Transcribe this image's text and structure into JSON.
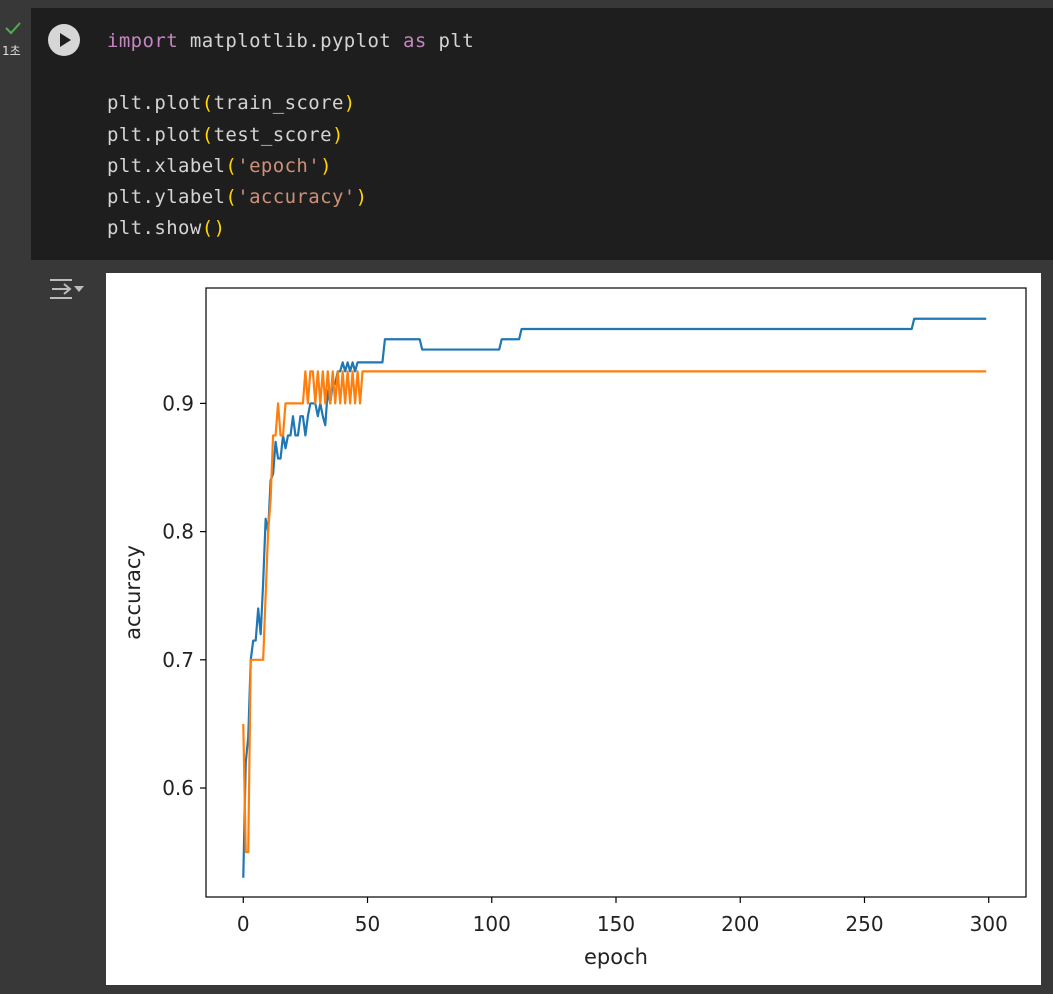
{
  "cell": {
    "status": "success",
    "exec_time": "1초",
    "code_lines": [
      {
        "pre": "",
        "kw": "import",
        "mid": " matplotlib.pyplot ",
        "kw2": "as",
        "post": " plt"
      },
      {
        "plain": ""
      },
      {
        "fn": "plt.plot",
        "open": "(",
        "arg": "train_score",
        "argtype": "plain",
        "close": ")"
      },
      {
        "fn": "plt.plot",
        "open": "(",
        "arg": "test_score",
        "argtype": "plain",
        "close": ")"
      },
      {
        "fn": "plt.xlabel",
        "open": "(",
        "arg": "'epoch'",
        "argtype": "str",
        "close": ")"
      },
      {
        "fn": "plt.ylabel",
        "open": "(",
        "arg": "'accuracy'",
        "argtype": "str",
        "close": ")"
      },
      {
        "fn": "plt.show",
        "open": "(",
        "arg": "",
        "argtype": "plain",
        "close": ")"
      }
    ]
  },
  "colors": {
    "train": "#1f77b4",
    "test": "#ff7f0e",
    "keyword": "#c586c0",
    "string": "#ce9178",
    "paren": "#ffd700"
  },
  "chart_data": {
    "type": "line",
    "xlabel": "epoch",
    "ylabel": "accuracy",
    "xlim": [
      -15,
      315
    ],
    "ylim": [
      0.515,
      0.99
    ],
    "xticks": [
      0,
      50,
      100,
      150,
      200,
      250,
      300
    ],
    "yticks": [
      0.6,
      0.7,
      0.8,
      0.9
    ],
    "ytick_labels": [
      "0.6",
      "0.7",
      "0.8",
      "0.9"
    ],
    "grid": false,
    "series": [
      {
        "key": "train",
        "points": [
          [
            0,
            0.53
          ],
          [
            1,
            0.62
          ],
          [
            2,
            0.64
          ],
          [
            3,
            0.7
          ],
          [
            4,
            0.715
          ],
          [
            5,
            0.715
          ],
          [
            6,
            0.74
          ],
          [
            7,
            0.72
          ],
          [
            8,
            0.76
          ],
          [
            9,
            0.81
          ],
          [
            10,
            0.8
          ],
          [
            11,
            0.84
          ],
          [
            12,
            0.845
          ],
          [
            13,
            0.87
          ],
          [
            14,
            0.857
          ],
          [
            15,
            0.857
          ],
          [
            16,
            0.875
          ],
          [
            17,
            0.865
          ],
          [
            18,
            0.875
          ],
          [
            19,
            0.875
          ],
          [
            20,
            0.89
          ],
          [
            21,
            0.875
          ],
          [
            22,
            0.875
          ],
          [
            23,
            0.89
          ],
          [
            24,
            0.89
          ],
          [
            25,
            0.875
          ],
          [
            26,
            0.89
          ],
          [
            27,
            0.9
          ],
          [
            28,
            0.9
          ],
          [
            29,
            0.9
          ],
          [
            30,
            0.89
          ],
          [
            31,
            0.9
          ],
          [
            32,
            0.89
          ],
          [
            33,
            0.883
          ],
          [
            34,
            0.91
          ],
          [
            35,
            0.9
          ],
          [
            36,
            0.915
          ],
          [
            37,
            0.915
          ],
          [
            38,
            0.925
          ],
          [
            39,
            0.925
          ],
          [
            40,
            0.932
          ],
          [
            41,
            0.925
          ],
          [
            42,
            0.932
          ],
          [
            43,
            0.925
          ],
          [
            44,
            0.932
          ],
          [
            45,
            0.925
          ],
          [
            46,
            0.932
          ],
          [
            56,
            0.932
          ],
          [
            57,
            0.95
          ],
          [
            71,
            0.95
          ],
          [
            72,
            0.942
          ],
          [
            103,
            0.942
          ],
          [
            104,
            0.95
          ],
          [
            111,
            0.95
          ],
          [
            112,
            0.958
          ],
          [
            269,
            0.958
          ],
          [
            270,
            0.966
          ],
          [
            299,
            0.966
          ]
        ]
      },
      {
        "key": "test",
        "points": [
          [
            0,
            0.65
          ],
          [
            1,
            0.55
          ],
          [
            2,
            0.55
          ],
          [
            3,
            0.7
          ],
          [
            4,
            0.7
          ],
          [
            5,
            0.7
          ],
          [
            6,
            0.7
          ],
          [
            7,
            0.7
          ],
          [
            8,
            0.7
          ],
          [
            9,
            0.75
          ],
          [
            10,
            0.8
          ],
          [
            11,
            0.825
          ],
          [
            12,
            0.875
          ],
          [
            13,
            0.875
          ],
          [
            14,
            0.9
          ],
          [
            15,
            0.875
          ],
          [
            16,
            0.875
          ],
          [
            17,
            0.9
          ],
          [
            18,
            0.9
          ],
          [
            19,
            0.9
          ],
          [
            20,
            0.9
          ],
          [
            21,
            0.9
          ],
          [
            22,
            0.9
          ],
          [
            23,
            0.9
          ],
          [
            24,
            0.9
          ],
          [
            25,
            0.925
          ],
          [
            26,
            0.9
          ],
          [
            27,
            0.925
          ],
          [
            28,
            0.925
          ],
          [
            29,
            0.9
          ],
          [
            30,
            0.925
          ],
          [
            31,
            0.9
          ],
          [
            32,
            0.925
          ],
          [
            33,
            0.9
          ],
          [
            34,
            0.925
          ],
          [
            35,
            0.9
          ],
          [
            36,
            0.925
          ],
          [
            37,
            0.9
          ],
          [
            38,
            0.925
          ],
          [
            39,
            0.9
          ],
          [
            40,
            0.925
          ],
          [
            41,
            0.9
          ],
          [
            42,
            0.925
          ],
          [
            43,
            0.9
          ],
          [
            44,
            0.925
          ],
          [
            45,
            0.9
          ],
          [
            46,
            0.925
          ],
          [
            47,
            0.9
          ],
          [
            48,
            0.925
          ],
          [
            299,
            0.925
          ]
        ]
      }
    ]
  }
}
